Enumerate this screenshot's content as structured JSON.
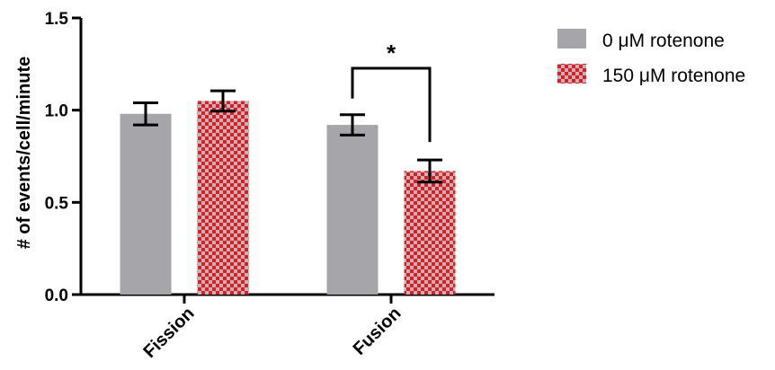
{
  "chart_data": {
    "type": "bar",
    "categories": [
      "Fission",
      "Fusion"
    ],
    "series": [
      {
        "name": "0 μM rotenone",
        "values": [
          0.98,
          0.92
        ],
        "errors": [
          0.06,
          0.055
        ],
        "color": "#a6a6aa",
        "pattern": "solid"
      },
      {
        "name": "150 μM rotenone",
        "values": [
          1.05,
          0.67
        ],
        "errors": [
          0.055,
          0.06
        ],
        "color": "#e8191e",
        "pattern": "checkerboard"
      }
    ],
    "ylabel": "# of events/cell/minute",
    "xlabel": "",
    "ylim": [
      0,
      1.5
    ],
    "yticks": [
      "0.0",
      "0.5",
      "1.0",
      "1.5"
    ],
    "legend_position": "top-right",
    "grid": false,
    "annotations": [
      {
        "text": "*",
        "type": "significance-bracket",
        "category": "Fusion",
        "between_series": [
          0,
          1
        ]
      }
    ]
  }
}
